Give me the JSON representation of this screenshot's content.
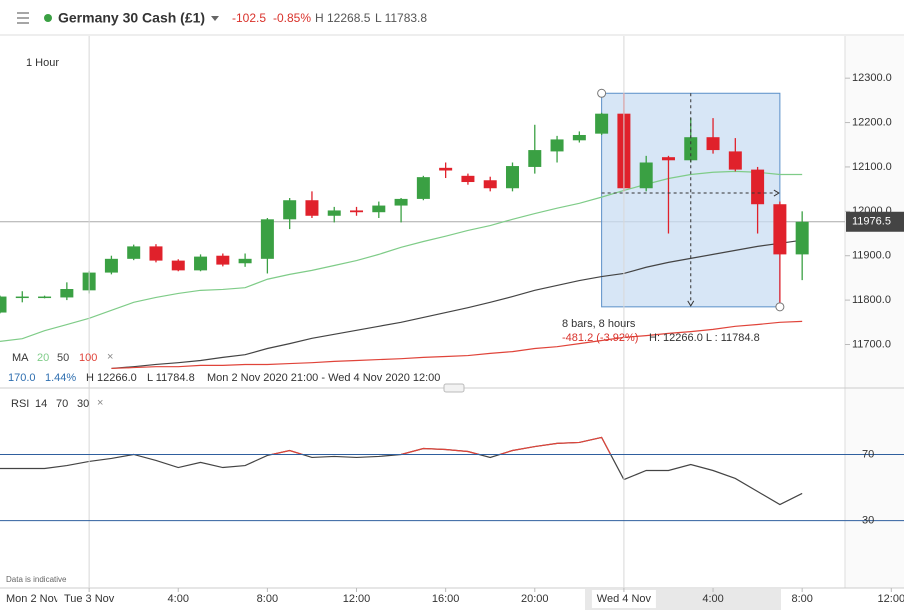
{
  "header": {
    "title": "Germany 30 Cash (£1)",
    "change": "-102.5",
    "change_pct": "-0.85%",
    "high": "H 12268.5",
    "low": "L 11783.8"
  },
  "timeframe": "1 Hour",
  "ma_legend": {
    "title": "MA",
    "close": "×"
  },
  "range_stats": {
    "points": "170.0",
    "pct": "1.44%",
    "high": "H 12266.0",
    "low": "L 11784.8",
    "period": "Mon 2 Nov 2020 21:00 - Wed 4 Nov 2020 12:00"
  },
  "rsi_legend": {
    "close": "×"
  },
  "disclaimer": "Data is indicative",
  "chart_data": [
    {
      "type": "candlestick",
      "up_color": "#3aa043",
      "down_color": "#e0212b",
      "ohlc": {
        "open": [
          11772,
          11805,
          11806,
          11806,
          11822,
          11862,
          11893,
          11921,
          11889,
          11867,
          11900,
          11883,
          11893,
          11982,
          12025,
          11990,
          12002,
          11998,
          12013,
          12028,
          12098,
          12080,
          12070,
          12052,
          12100,
          12135,
          12160,
          12175,
          12220,
          12052,
          12122,
          12115,
          12167,
          12135,
          12094,
          12016,
          11903
        ],
        "high": [
          11810,
          11820,
          11810,
          11840,
          11866,
          11900,
          11925,
          11926,
          11892,
          11903,
          11905,
          11905,
          11985,
          12030,
          12045,
          12010,
          12010,
          12022,
          12030,
          12080,
          12110,
          12085,
          12078,
          12110,
          12195,
          12170,
          12180,
          12222,
          12266,
          12125,
          12125,
          12210,
          12210,
          12165,
          12100,
          12022,
          12000
        ],
        "low": [
          11770,
          11795,
          11804,
          11800,
          11815,
          11858,
          11890,
          11885,
          11865,
          11865,
          11876,
          11875,
          11860,
          11960,
          11985,
          11975,
          11990,
          11985,
          11975,
          12025,
          12075,
          12060,
          12045,
          12045,
          12085,
          12110,
          12155,
          12172,
          12045,
          12045,
          11950,
          12110,
          12130,
          12090,
          11950,
          11784.8,
          11845
        ],
        "close": [
          11808,
          11808,
          11808,
          11825,
          11862,
          11893,
          11921,
          11889,
          11867,
          11898,
          11880,
          11893,
          11982,
          12025,
          11990,
          12002,
          11998,
          12013,
          12028,
          12077,
          12092,
          12066,
          12052,
          12102,
          12138,
          12162,
          12172,
          12220,
          12052,
          12110,
          12115,
          12167,
          12138,
          12094,
          12016,
          11903,
          11976.5
        ]
      },
      "series": [
        {
          "name": "20",
          "color": "#7fcc88",
          "values": [
            11707,
            11713,
            11731,
            11745,
            11759,
            11777,
            11795,
            11806,
            11815,
            11822,
            11824,
            11828,
            11847,
            11858,
            11867,
            11878,
            11889,
            11903,
            11919,
            11932,
            11944,
            11957,
            11968,
            11982,
            11995,
            12007,
            12018,
            12032,
            12047,
            12061,
            12074,
            12083,
            12088,
            12090,
            12088,
            12083,
            12083
          ]
        },
        {
          "name": "50",
          "color": "#444444",
          "values": [
            null,
            null,
            null,
            null,
            null,
            11646,
            11650,
            11655,
            11659,
            11664,
            11671,
            11677,
            11691,
            11702,
            11714,
            11723,
            11732,
            11741,
            11750,
            11761,
            11772,
            11783,
            11795,
            11808,
            11822,
            11833,
            11844,
            11853,
            11860,
            11874,
            11885,
            11894,
            11903,
            11912,
            11921,
            11928,
            11935
          ]
        },
        {
          "name": "100",
          "color": "#e0443a",
          "values": [
            null,
            null,
            null,
            null,
            null,
            11646,
            11648,
            11650,
            11650,
            11653,
            11653,
            11655,
            11655,
            11657,
            11659,
            11662,
            11664,
            11666,
            11668,
            11671,
            11673,
            11675,
            11680,
            11684,
            11691,
            11695,
            11702,
            11709,
            11716,
            11720,
            11725,
            11729,
            11734,
            11741,
            11745,
            11750,
            11752
          ]
        }
      ],
      "last_price": 11976.5,
      "measure": {
        "high": 12266.0,
        "low": 11784.8,
        "label": "8 bars, 8 hours",
        "change_label": "-481.2 (-3.92%)",
        "hl_label": "H: 12266.0 L : 11784.8"
      },
      "ylim": [
        11620,
        12395
      ],
      "yticks": [
        {
          "value": 11700,
          "label": "11700.0"
        },
        {
          "value": 11800,
          "label": "11800.0"
        },
        {
          "value": 11900,
          "label": "11900.0"
        },
        {
          "value": 12000,
          "label": "12000.0"
        },
        {
          "value": 12100,
          "label": "12100.0"
        },
        {
          "value": 12200,
          "label": "12200.0"
        },
        {
          "value": 12300,
          "label": "12300.0"
        }
      ],
      "xlim": [
        0,
        40.57
      ],
      "x_start_label": "Mon 2 Nov",
      "xticks": [
        {
          "value": 4,
          "label": "Tue 3 Nov"
        },
        {
          "value": 8,
          "label": "4:00"
        },
        {
          "value": 12,
          "label": "8:00"
        },
        {
          "value": 16,
          "label": "12:00"
        },
        {
          "value": 20,
          "label": "16:00"
        },
        {
          "value": 24,
          "label": "20:00"
        },
        {
          "value": 28,
          "label": "Wed 4 Nov"
        },
        {
          "value": 32,
          "label": "4:00"
        },
        {
          "value": 36,
          "label": "8:00"
        },
        {
          "value": 40,
          "label": "12:00"
        }
      ]
    },
    {
      "type": "line",
      "title": "RSI",
      "period": 14,
      "levels": [
        70,
        30
      ],
      "color": "#444444",
      "overbought_color": "#e0443a",
      "values": [
        61.5,
        61.5,
        61.5,
        63.3,
        65.8,
        67.6,
        70.0,
        66.4,
        62.1,
        65.2,
        62.1,
        63.3,
        69.4,
        72.4,
        68.2,
        68.8,
        68.2,
        68.8,
        70.0,
        73.6,
        73.0,
        71.8,
        68.2,
        72.4,
        74.8,
        76.7,
        77.3,
        80.3,
        54.8,
        60.3,
        60.3,
        63.9,
        60.3,
        55.5,
        47.6,
        39.7,
        46.4
      ],
      "ylim": [
        -9,
        106
      ],
      "yticks": [
        70,
        30
      ]
    }
  ]
}
